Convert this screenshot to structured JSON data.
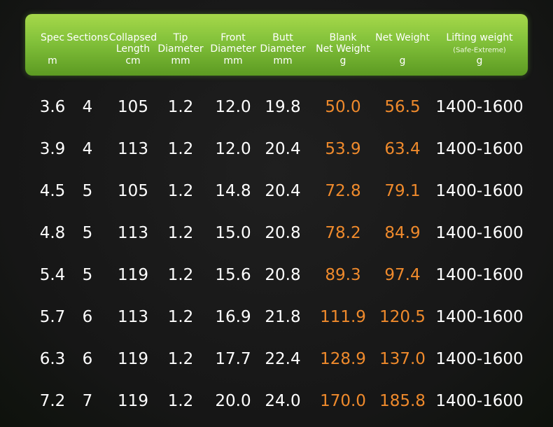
{
  "table": {
    "columns": [
      {
        "lines": [
          "Spec"
        ],
        "unit": "m"
      },
      {
        "lines": [
          "Sections"
        ]
      },
      {
        "lines": [
          "Collapsed",
          "Length"
        ],
        "unit": "cm"
      },
      {
        "lines": [
          "Tip",
          "Diameter"
        ],
        "unit": "mm"
      },
      {
        "lines": [
          "Front",
          "Diameter"
        ],
        "unit": "mm"
      },
      {
        "lines": [
          "Butt",
          "Diameter"
        ],
        "unit": "mm"
      },
      {
        "lines": [
          "Blank",
          "Net Weight"
        ],
        "unit": "g"
      },
      {
        "lines": [
          "Net Weight"
        ],
        "unit": "g"
      },
      {
        "lines": [
          "Lifting weight"
        ],
        "note": "(Safe-Extreme)",
        "unit": "g"
      }
    ],
    "rows": [
      [
        "3.6",
        "4",
        "105",
        "1.2",
        "12.0",
        "19.8",
        "50.0",
        "56.5",
        "1400-1600"
      ],
      [
        "3.9",
        "4",
        "113",
        "1.2",
        "12.0",
        "20.4",
        "53.9",
        "63.4",
        "1400-1600"
      ],
      [
        "4.5",
        "5",
        "105",
        "1.2",
        "14.8",
        "20.4",
        "72.8",
        "79.1",
        "1400-1600"
      ],
      [
        "4.8",
        "5",
        "113",
        "1.2",
        "15.0",
        "20.8",
        "78.2",
        "84.9",
        "1400-1600"
      ],
      [
        "5.4",
        "5",
        "119",
        "1.2",
        "15.6",
        "20.8",
        "89.3",
        "97.4",
        "1400-1600"
      ],
      [
        "5.7",
        "6",
        "113",
        "1.2",
        "16.9",
        "21.8",
        "111.9",
        "120.5",
        "1400-1600"
      ],
      [
        "6.3",
        "6",
        "119",
        "1.2",
        "17.7",
        "22.4",
        "128.9",
        "137.0",
        "1400-1600"
      ],
      [
        "7.2",
        "7",
        "119",
        "1.2",
        "20.0",
        "24.0",
        "170.0",
        "185.8",
        "1400-1600"
      ]
    ]
  }
}
